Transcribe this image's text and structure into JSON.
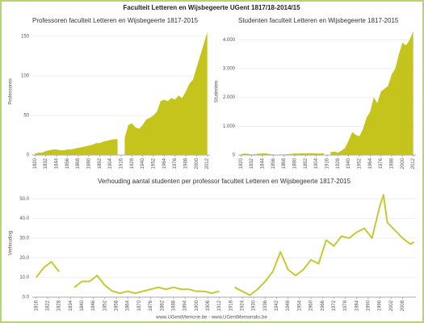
{
  "header": {
    "title": "Faculteit Letteren en Wijsbegeerte UGent 1817/18-2014/15"
  },
  "footer": {
    "text": "www.UGentMemorie.be - www.UGentMemorialis.be"
  },
  "chart_data": [
    {
      "type": "area",
      "title": "Professoren faculteit Letteren en Wijsbegeerte 1817-2015",
      "ylabel": "Professoren",
      "color": "#c4c41c",
      "x": [
        1820,
        1824,
        1828,
        1832,
        1836,
        1840,
        1844,
        1848,
        1852,
        1856,
        1860,
        1864,
        1868,
        1872,
        1876,
        1880,
        1884,
        1888,
        1892,
        1896,
        1900,
        1904,
        1908,
        1912,
        1916,
        1920,
        1924,
        1928,
        1932,
        1936,
        1940,
        1944,
        1948,
        1952,
        1956,
        1960,
        1964,
        1968,
        1972,
        1976,
        1980,
        1984,
        1988,
        1992,
        1996,
        2000,
        2004,
        2008,
        2012
      ],
      "values": [
        2,
        3,
        3,
        5,
        6,
        7,
        7,
        6,
        6,
        7,
        7,
        8,
        9,
        10,
        11,
        12,
        13,
        15,
        15,
        17,
        18,
        19,
        20,
        20,
        null,
        22,
        38,
        40,
        35,
        33,
        38,
        45,
        47,
        50,
        55,
        68,
        70,
        68,
        72,
        70,
        75,
        72,
        80,
        90,
        95,
        110,
        125,
        140,
        155
      ],
      "xlim": [
        1817,
        2015
      ],
      "ylim": [
        0,
        160
      ],
      "xticks": [
        1820,
        1832,
        1844,
        1856,
        1868,
        1880,
        1892,
        1904,
        1916,
        1928,
        1940,
        1952,
        1964,
        1976,
        1988,
        2000,
        2012
      ],
      "yticks": [
        0,
        50,
        100,
        150
      ]
    },
    {
      "type": "area",
      "title": "Studenten faculteit Letteren en Wijsbegeerte 1817-2015",
      "ylabel": "Studenten",
      "color": "#c4c41c",
      "x": [
        1820,
        1824,
        1828,
        1832,
        1836,
        1840,
        1844,
        1848,
        1852,
        1856,
        1860,
        1864,
        1868,
        1872,
        1876,
        1880,
        1884,
        1888,
        1892,
        1896,
        1900,
        1904,
        1908,
        1912,
        1916,
        1920,
        1924,
        1928,
        1932,
        1936,
        1940,
        1944,
        1948,
        1952,
        1956,
        1960,
        1964,
        1968,
        1972,
        1976,
        1980,
        1984,
        1988,
        1992,
        1996,
        2000,
        2004,
        2008,
        2012
      ],
      "values": [
        30,
        50,
        45,
        20,
        30,
        50,
        55,
        60,
        30,
        20,
        15,
        20,
        20,
        30,
        40,
        55,
        50,
        60,
        60,
        65,
        55,
        60,
        50,
        70,
        null,
        100,
        120,
        80,
        150,
        250,
        500,
        800,
        700,
        650,
        900,
        1300,
        1500,
        2000,
        1800,
        2200,
        2300,
        2400,
        2800,
        3000,
        3500,
        3900,
        3800,
        4000,
        4300
      ],
      "xlim": [
        1817,
        2015
      ],
      "ylim": [
        0,
        4400
      ],
      "xticks": [
        1820,
        1832,
        1844,
        1856,
        1868,
        1880,
        1892,
        1904,
        1916,
        1928,
        1940,
        1952,
        1964,
        1976,
        1988,
        2000,
        2012
      ],
      "yticks": [
        0,
        {
          "value": 1000,
          "label": "1.000"
        },
        {
          "value": 2000,
          "label": "2.000"
        },
        {
          "value": 3000,
          "label": "3.000"
        },
        {
          "value": 4000,
          "label": "4.000"
        }
      ]
    },
    {
      "type": "line",
      "title": "Verhouding aantal studenten per professor faculteit Letteren en Wijsbegeerte 1817-2015",
      "ylabel": "Verhouding",
      "color": "#c8c832",
      "x": [
        1816,
        1820,
        1824,
        1828,
        1832,
        1836,
        1840,
        1844,
        1848,
        1852,
        1856,
        1860,
        1864,
        1868,
        1872,
        1876,
        1880,
        1884,
        1888,
        1892,
        1896,
        1900,
        1904,
        1908,
        1912,
        1916,
        1920,
        1924,
        1928,
        1932,
        1936,
        1940,
        1944,
        1948,
        1952,
        1956,
        1960,
        1964,
        1968,
        1972,
        1976,
        1980,
        1984,
        1988,
        1992,
        1996,
        1998,
        2000,
        2004,
        2008,
        2012,
        2014
      ],
      "values": [
        10,
        15,
        18,
        13,
        null,
        5,
        8,
        8,
        11,
        6,
        3,
        2,
        3,
        2,
        3,
        4,
        5,
        4,
        5,
        4,
        4,
        3,
        3,
        2,
        3,
        null,
        5,
        3,
        1,
        4,
        8,
        13,
        23,
        14,
        11,
        14,
        19,
        17,
        29,
        26,
        31,
        30,
        33,
        35,
        30,
        46,
        52,
        38,
        34,
        30,
        27,
        28
      ],
      "xlim": [
        1814,
        2015
      ],
      "ylim": [
        0,
        55
      ],
      "xticks": [
        1816,
        1822,
        1828,
        1834,
        1840,
        1846,
        1852,
        1858,
        1864,
        1870,
        1876,
        1882,
        1888,
        1894,
        1900,
        1906,
        1912,
        1918,
        1924,
        1930,
        1936,
        1942,
        1948,
        1954,
        1960,
        1966,
        1972,
        1978,
        1984,
        1990,
        1996,
        2002,
        2008
      ],
      "yticks": [
        {
          "value": 0,
          "label": "0.0"
        },
        {
          "value": 10,
          "label": "10.0"
        },
        {
          "value": 20,
          "label": "20.0"
        },
        {
          "value": 30,
          "label": "30.0"
        },
        {
          "value": 40,
          "label": "40.0"
        },
        {
          "value": 50,
          "label": "50.0"
        }
      ]
    }
  ]
}
